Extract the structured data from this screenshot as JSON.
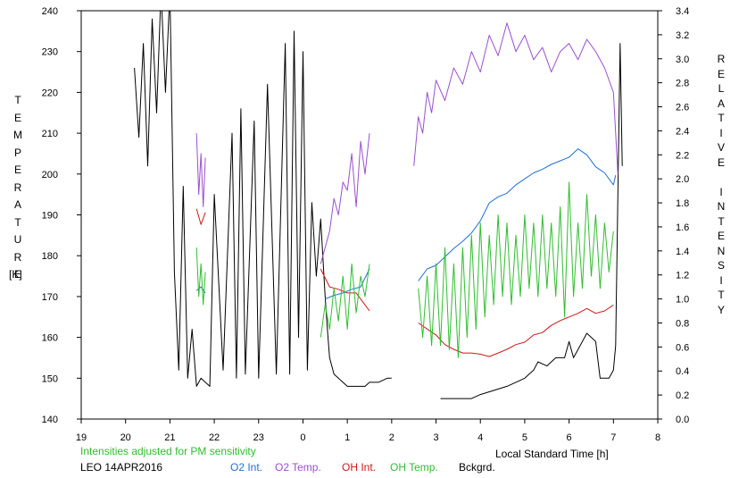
{
  "chart_data": {
    "type": "line",
    "xlabel": "Local Standard Time [h]",
    "ylabel_left": "TEMPERATURE",
    "ylabel_left_unit": "[K]",
    "ylabel_right": "RELATIVE INTENSITY",
    "xlim": [
      19,
      32
    ],
    "ylim_left": [
      140,
      240
    ],
    "ylim_right": [
      0.0,
      3.4
    ],
    "x_ticks": [
      19,
      20,
      21,
      22,
      23,
      24,
      25,
      26,
      27,
      28,
      29,
      30,
      31,
      32
    ],
    "x_tick_labels": [
      "19",
      "20",
      "21",
      "22",
      "23",
      "0",
      "1",
      "2",
      "3",
      "4",
      "5",
      "6",
      "7",
      "8"
    ],
    "left_ticks": [
      "140",
      "150",
      "160",
      "170",
      "180",
      "190",
      "200",
      "210",
      "220",
      "230",
      "240"
    ],
    "right_ticks": [
      "0.0",
      "0.2",
      "0.4",
      "0.6",
      "0.8",
      "1.0",
      "1.2",
      "1.4",
      "1.6",
      "1.8",
      "2.0",
      "2.2",
      "2.4",
      "2.6",
      "2.8",
      "3.0",
      "3.2",
      "3.4"
    ],
    "note": "Intensities adjusted for PM sensitivity",
    "station": "LEO 14APR2016",
    "legend": [
      {
        "label": "O2 Int.",
        "color": "#1e6fd6"
      },
      {
        "label": "O2 Temp.",
        "color": "#9b4fd0"
      },
      {
        "label": "OH Int.",
        "color": "#d01818"
      },
      {
        "label": "OH Temp.",
        "color": "#2fbe2f"
      },
      {
        "label": "Bckgrd.",
        "color": "#000000"
      }
    ],
    "series": [
      {
        "key": "bckgrd",
        "axis": "left",
        "color": "#000000",
        "segments": [
          [
            [
              20.2,
              226
            ],
            [
              20.3,
              209
            ],
            [
              20.4,
              232
            ],
            [
              20.5,
              202
            ],
            [
              20.6,
              238
            ],
            [
              20.7,
              215
            ],
            [
              20.8,
              245
            ],
            [
              20.9,
              220
            ],
            [
              21.0,
              245
            ],
            [
              21.1,
              176
            ],
            [
              21.2,
              152
            ],
            [
              21.3,
              197
            ],
            [
              21.4,
              150
            ],
            [
              21.5,
              162
            ],
            [
              21.6,
              148
            ],
            [
              21.7,
              150
            ],
            [
              21.8,
              149
            ],
            [
              21.9,
              148
            ],
            [
              22.0,
              195
            ],
            [
              22.2,
              152
            ],
            [
              22.4,
              210
            ],
            [
              22.5,
              150
            ],
            [
              22.6,
              216
            ],
            [
              22.7,
              151
            ],
            [
              22.9,
              213
            ],
            [
              23.0,
              150
            ],
            [
              23.2,
              222
            ],
            [
              23.4,
              151
            ],
            [
              23.6,
              232
            ],
            [
              23.7,
              151
            ],
            [
              23.8,
              235
            ],
            [
              23.9,
              160
            ],
            [
              24.0,
              230
            ],
            [
              24.1,
              152
            ],
            [
              24.2,
              193
            ],
            [
              24.3,
              175
            ],
            [
              24.4,
              189
            ],
            [
              24.5,
              170
            ],
            [
              24.55,
              162
            ],
            [
              24.6,
              155
            ],
            [
              24.7,
              151
            ],
            [
              24.8,
              150
            ],
            [
              24.9,
              149
            ],
            [
              25.0,
              148
            ],
            [
              25.2,
              148
            ],
            [
              25.4,
              148
            ],
            [
              25.5,
              149
            ],
            [
              25.7,
              149
            ],
            [
              25.9,
              150
            ],
            [
              26.0,
              150
            ]
          ],
          [
            [
              27.1,
              145
            ],
            [
              27.5,
              145
            ],
            [
              27.8,
              145
            ],
            [
              28.0,
              146
            ],
            [
              28.3,
              147
            ],
            [
              28.6,
              148
            ],
            [
              28.8,
              149
            ],
            [
              29.0,
              150
            ],
            [
              29.2,
              152
            ],
            [
              29.3,
              154
            ],
            [
              29.5,
              153
            ],
            [
              29.7,
              155
            ],
            [
              29.9,
              155
            ],
            [
              30.0,
              159
            ],
            [
              30.1,
              155
            ],
            [
              30.2,
              157
            ],
            [
              30.4,
              161
            ],
            [
              30.5,
              160
            ],
            [
              30.6,
              159
            ],
            [
              30.7,
              150
            ],
            [
              30.9,
              150
            ],
            [
              31.0,
              152
            ],
            [
              31.05,
              158
            ],
            [
              31.1,
              195
            ],
            [
              31.15,
              232
            ],
            [
              31.2,
              202
            ]
          ]
        ]
      },
      {
        "key": "o2_temp",
        "axis": "left",
        "color": "#9b4fd0",
        "segments": [
          [
            [
              21.6,
              210
            ],
            [
              21.65,
              195
            ],
            [
              21.7,
              205
            ],
            [
              21.75,
              192
            ],
            [
              21.8,
              204
            ]
          ],
          [
            [
              24.4,
              178
            ],
            [
              24.5,
              182
            ],
            [
              24.6,
              186
            ],
            [
              24.7,
              194
            ],
            [
              24.8,
              190
            ],
            [
              24.9,
              198
            ],
            [
              25.0,
              196
            ],
            [
              25.1,
              205
            ],
            [
              25.2,
              192
            ],
            [
              25.3,
              208
            ],
            [
              25.4,
              200
            ],
            [
              25.5,
              210
            ]
          ],
          [
            [
              26.5,
              202
            ],
            [
              26.6,
              214
            ],
            [
              26.7,
              210
            ],
            [
              26.8,
              220
            ],
            [
              26.9,
              215
            ],
            [
              27.0,
              223
            ],
            [
              27.2,
              218
            ],
            [
              27.4,
              226
            ],
            [
              27.6,
              222
            ],
            [
              27.8,
              230
            ],
            [
              28.0,
              225
            ],
            [
              28.2,
              234
            ],
            [
              28.4,
              229
            ],
            [
              28.6,
              237
            ],
            [
              28.8,
              230
            ],
            [
              29.0,
              234
            ],
            [
              29.2,
              228
            ],
            [
              29.4,
              231
            ],
            [
              29.6,
              225
            ],
            [
              29.8,
              230
            ],
            [
              30.0,
              232
            ],
            [
              30.2,
              228
            ],
            [
              30.4,
              233
            ],
            [
              30.6,
              230
            ],
            [
              30.8,
              226
            ],
            [
              31.0,
              220
            ],
            [
              31.1,
              200
            ]
          ]
        ]
      },
      {
        "key": "oh_int",
        "axis": "right",
        "color": "#d01818",
        "segments": [
          [
            [
              21.6,
              1.75
            ],
            [
              21.7,
              1.62
            ],
            [
              21.8,
              1.72
            ]
          ],
          [
            [
              24.4,
              1.25
            ],
            [
              24.6,
              1.1
            ],
            [
              24.8,
              1.08
            ],
            [
              25.0,
              1.05
            ],
            [
              25.2,
              1.05
            ],
            [
              25.4,
              0.95
            ],
            [
              25.5,
              0.9
            ]
          ],
          [
            [
              26.6,
              0.8
            ],
            [
              26.8,
              0.75
            ],
            [
              27.0,
              0.7
            ],
            [
              27.2,
              0.62
            ],
            [
              27.4,
              0.58
            ],
            [
              27.6,
              0.55
            ],
            [
              27.8,
              0.55
            ],
            [
              28.0,
              0.54
            ],
            [
              28.2,
              0.52
            ],
            [
              28.4,
              0.55
            ],
            [
              28.6,
              0.58
            ],
            [
              28.8,
              0.62
            ],
            [
              29.0,
              0.64
            ],
            [
              29.2,
              0.7
            ],
            [
              29.4,
              0.72
            ],
            [
              29.6,
              0.78
            ],
            [
              29.8,
              0.82
            ],
            [
              30.0,
              0.85
            ],
            [
              30.2,
              0.88
            ],
            [
              30.4,
              0.92
            ],
            [
              30.6,
              0.88
            ],
            [
              30.8,
              0.9
            ],
            [
              31.0,
              0.95
            ]
          ]
        ]
      },
      {
        "key": "o2_int",
        "axis": "right",
        "color": "#1e6fd6",
        "segments": [
          [
            [
              21.6,
              1.07
            ],
            [
              21.7,
              1.1
            ],
            [
              21.8,
              1.05
            ]
          ],
          [
            [
              24.5,
              1.0
            ],
            [
              24.7,
              1.03
            ],
            [
              24.9,
              1.05
            ],
            [
              25.1,
              1.08
            ],
            [
              25.3,
              1.1
            ],
            [
              25.5,
              1.25
            ]
          ],
          [
            [
              26.6,
              1.15
            ],
            [
              26.8,
              1.25
            ],
            [
              27.0,
              1.28
            ],
            [
              27.2,
              1.35
            ],
            [
              27.4,
              1.42
            ],
            [
              27.6,
              1.48
            ],
            [
              27.8,
              1.55
            ],
            [
              28.0,
              1.65
            ],
            [
              28.2,
              1.8
            ],
            [
              28.4,
              1.85
            ],
            [
              28.6,
              1.88
            ],
            [
              28.8,
              1.95
            ],
            [
              29.0,
              2.0
            ],
            [
              29.2,
              2.05
            ],
            [
              29.4,
              2.08
            ],
            [
              29.6,
              2.12
            ],
            [
              29.8,
              2.15
            ],
            [
              30.0,
              2.18
            ],
            [
              30.2,
              2.25
            ],
            [
              30.4,
              2.2
            ],
            [
              30.6,
              2.1
            ],
            [
              30.8,
              2.05
            ],
            [
              31.0,
              1.95
            ],
            [
              31.05,
              2.03
            ]
          ]
        ]
      },
      {
        "key": "oh_temp",
        "axis": "left",
        "color": "#2fbe2f",
        "segments": [
          [
            [
              21.6,
              182
            ],
            [
              21.65,
              170
            ],
            [
              21.7,
              178
            ],
            [
              21.75,
              168
            ],
            [
              21.8,
              176
            ]
          ],
          [
            [
              24.4,
              160
            ],
            [
              24.5,
              168
            ],
            [
              24.6,
              162
            ],
            [
              24.7,
              172
            ],
            [
              24.8,
              164
            ],
            [
              24.9,
              175
            ],
            [
              25.0,
              162
            ],
            [
              25.1,
              178
            ],
            [
              25.2,
              166
            ],
            [
              25.3,
              175
            ],
            [
              25.4,
              170
            ],
            [
              25.5,
              178
            ]
          ],
          [
            [
              26.6,
              172
            ],
            [
              26.7,
              160
            ],
            [
              26.8,
              175
            ],
            [
              26.9,
              158
            ],
            [
              27.0,
              178
            ],
            [
              27.1,
              158
            ],
            [
              27.2,
              182
            ],
            [
              27.3,
              157
            ],
            [
              27.4,
              178
            ],
            [
              27.5,
              155
            ],
            [
              27.6,
              182
            ],
            [
              27.7,
              160
            ],
            [
              27.8,
              185
            ],
            [
              27.9,
              162
            ],
            [
              28.0,
              188
            ],
            [
              28.1,
              165
            ],
            [
              28.2,
              185
            ],
            [
              28.3,
              168
            ],
            [
              28.4,
              190
            ],
            [
              28.5,
              170
            ],
            [
              28.6,
              188
            ],
            [
              28.7,
              168
            ],
            [
              28.8,
              185
            ],
            [
              28.9,
              170
            ],
            [
              29.0,
              190
            ],
            [
              29.1,
              172
            ],
            [
              29.2,
              188
            ],
            [
              29.3,
              170
            ],
            [
              29.4,
              190
            ],
            [
              29.5,
              172
            ],
            [
              29.6,
              188
            ],
            [
              29.7,
              170
            ],
            [
              29.8,
              192
            ],
            [
              29.9,
              165
            ],
            [
              30.0,
              198
            ],
            [
              30.1,
              170
            ],
            [
              30.2,
              188
            ],
            [
              30.3,
              172
            ],
            [
              30.4,
              195
            ],
            [
              30.5,
              175
            ],
            [
              30.6,
              190
            ],
            [
              30.7,
              172
            ],
            [
              30.8,
              188
            ],
            [
              30.9,
              176
            ],
            [
              31.0,
              186
            ]
          ]
        ]
      }
    ]
  }
}
